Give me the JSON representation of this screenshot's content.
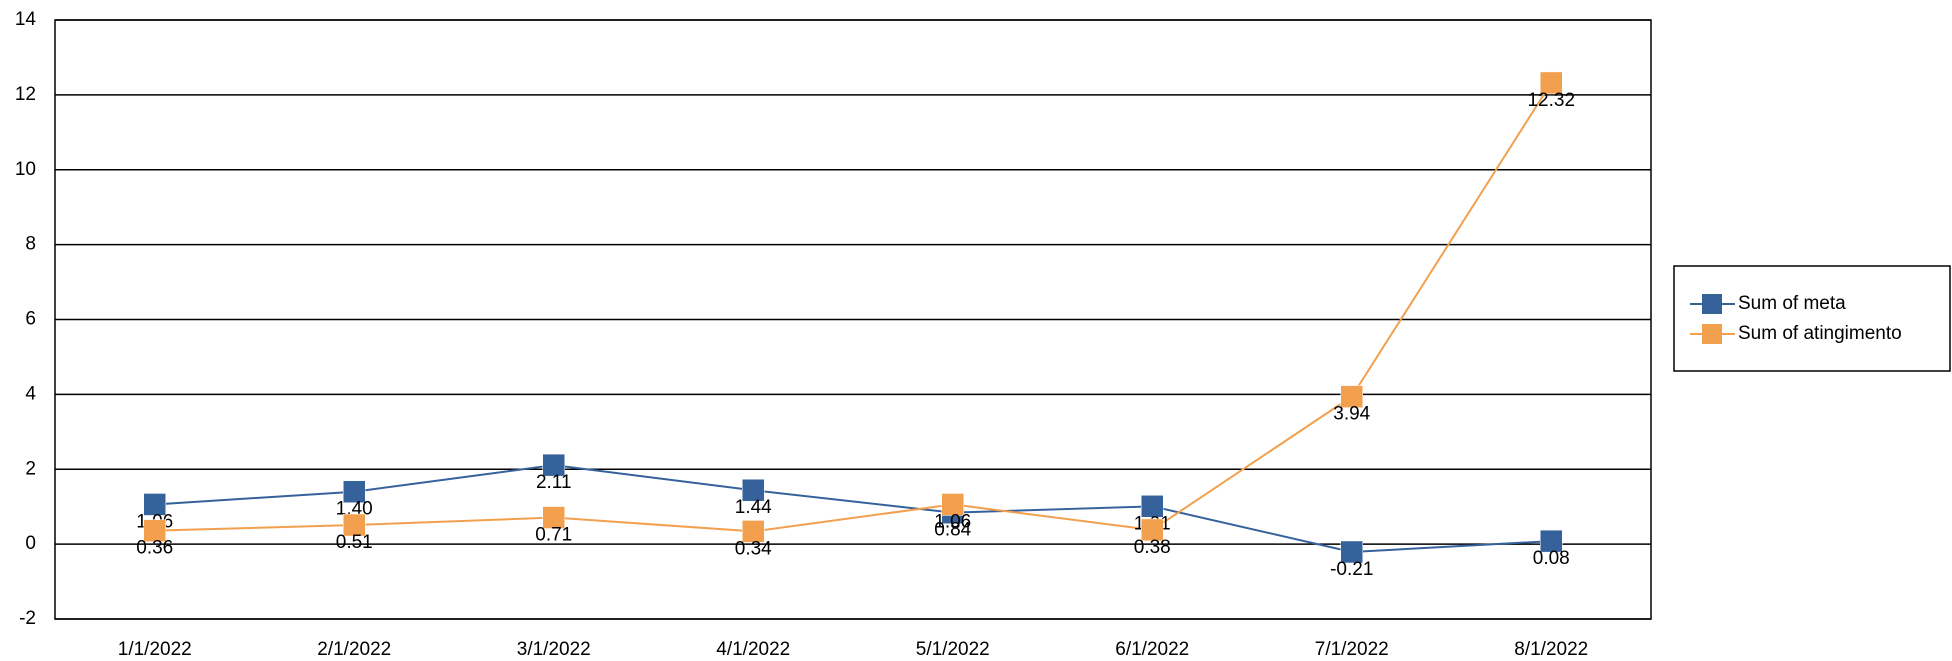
{
  "chart_data": {
    "type": "line",
    "categories": [
      "1/1/2022",
      "2/1/2022",
      "3/1/2022",
      "4/1/2022",
      "5/1/2022",
      "6/1/2022",
      "7/1/2022",
      "8/1/2022"
    ],
    "series": [
      {
        "name": "Sum of meta",
        "color": "#36629b",
        "values": [
          1.06,
          1.4,
          2.11,
          1.44,
          0.84,
          1.01,
          -0.21,
          0.08
        ],
        "value_labels": [
          "1.06",
          "1.40",
          "2.11",
          "1.44",
          "0.84",
          "1.01",
          "-0.21",
          "0.08"
        ]
      },
      {
        "name": "Sum of atingimento",
        "color": "#f3a04e",
        "values": [
          0.36,
          0.51,
          0.71,
          0.34,
          1.06,
          0.38,
          3.94,
          12.32
        ],
        "value_labels": [
          "0.36",
          "0.51",
          "0.71",
          "0.34",
          "1.06",
          "0.38",
          "3.94",
          "12.32"
        ]
      }
    ],
    "ylim": [
      -2,
      14
    ],
    "yticks": [
      -2,
      0,
      2,
      4,
      6,
      8,
      10,
      12,
      14
    ],
    "grid": true,
    "legend": "right"
  }
}
